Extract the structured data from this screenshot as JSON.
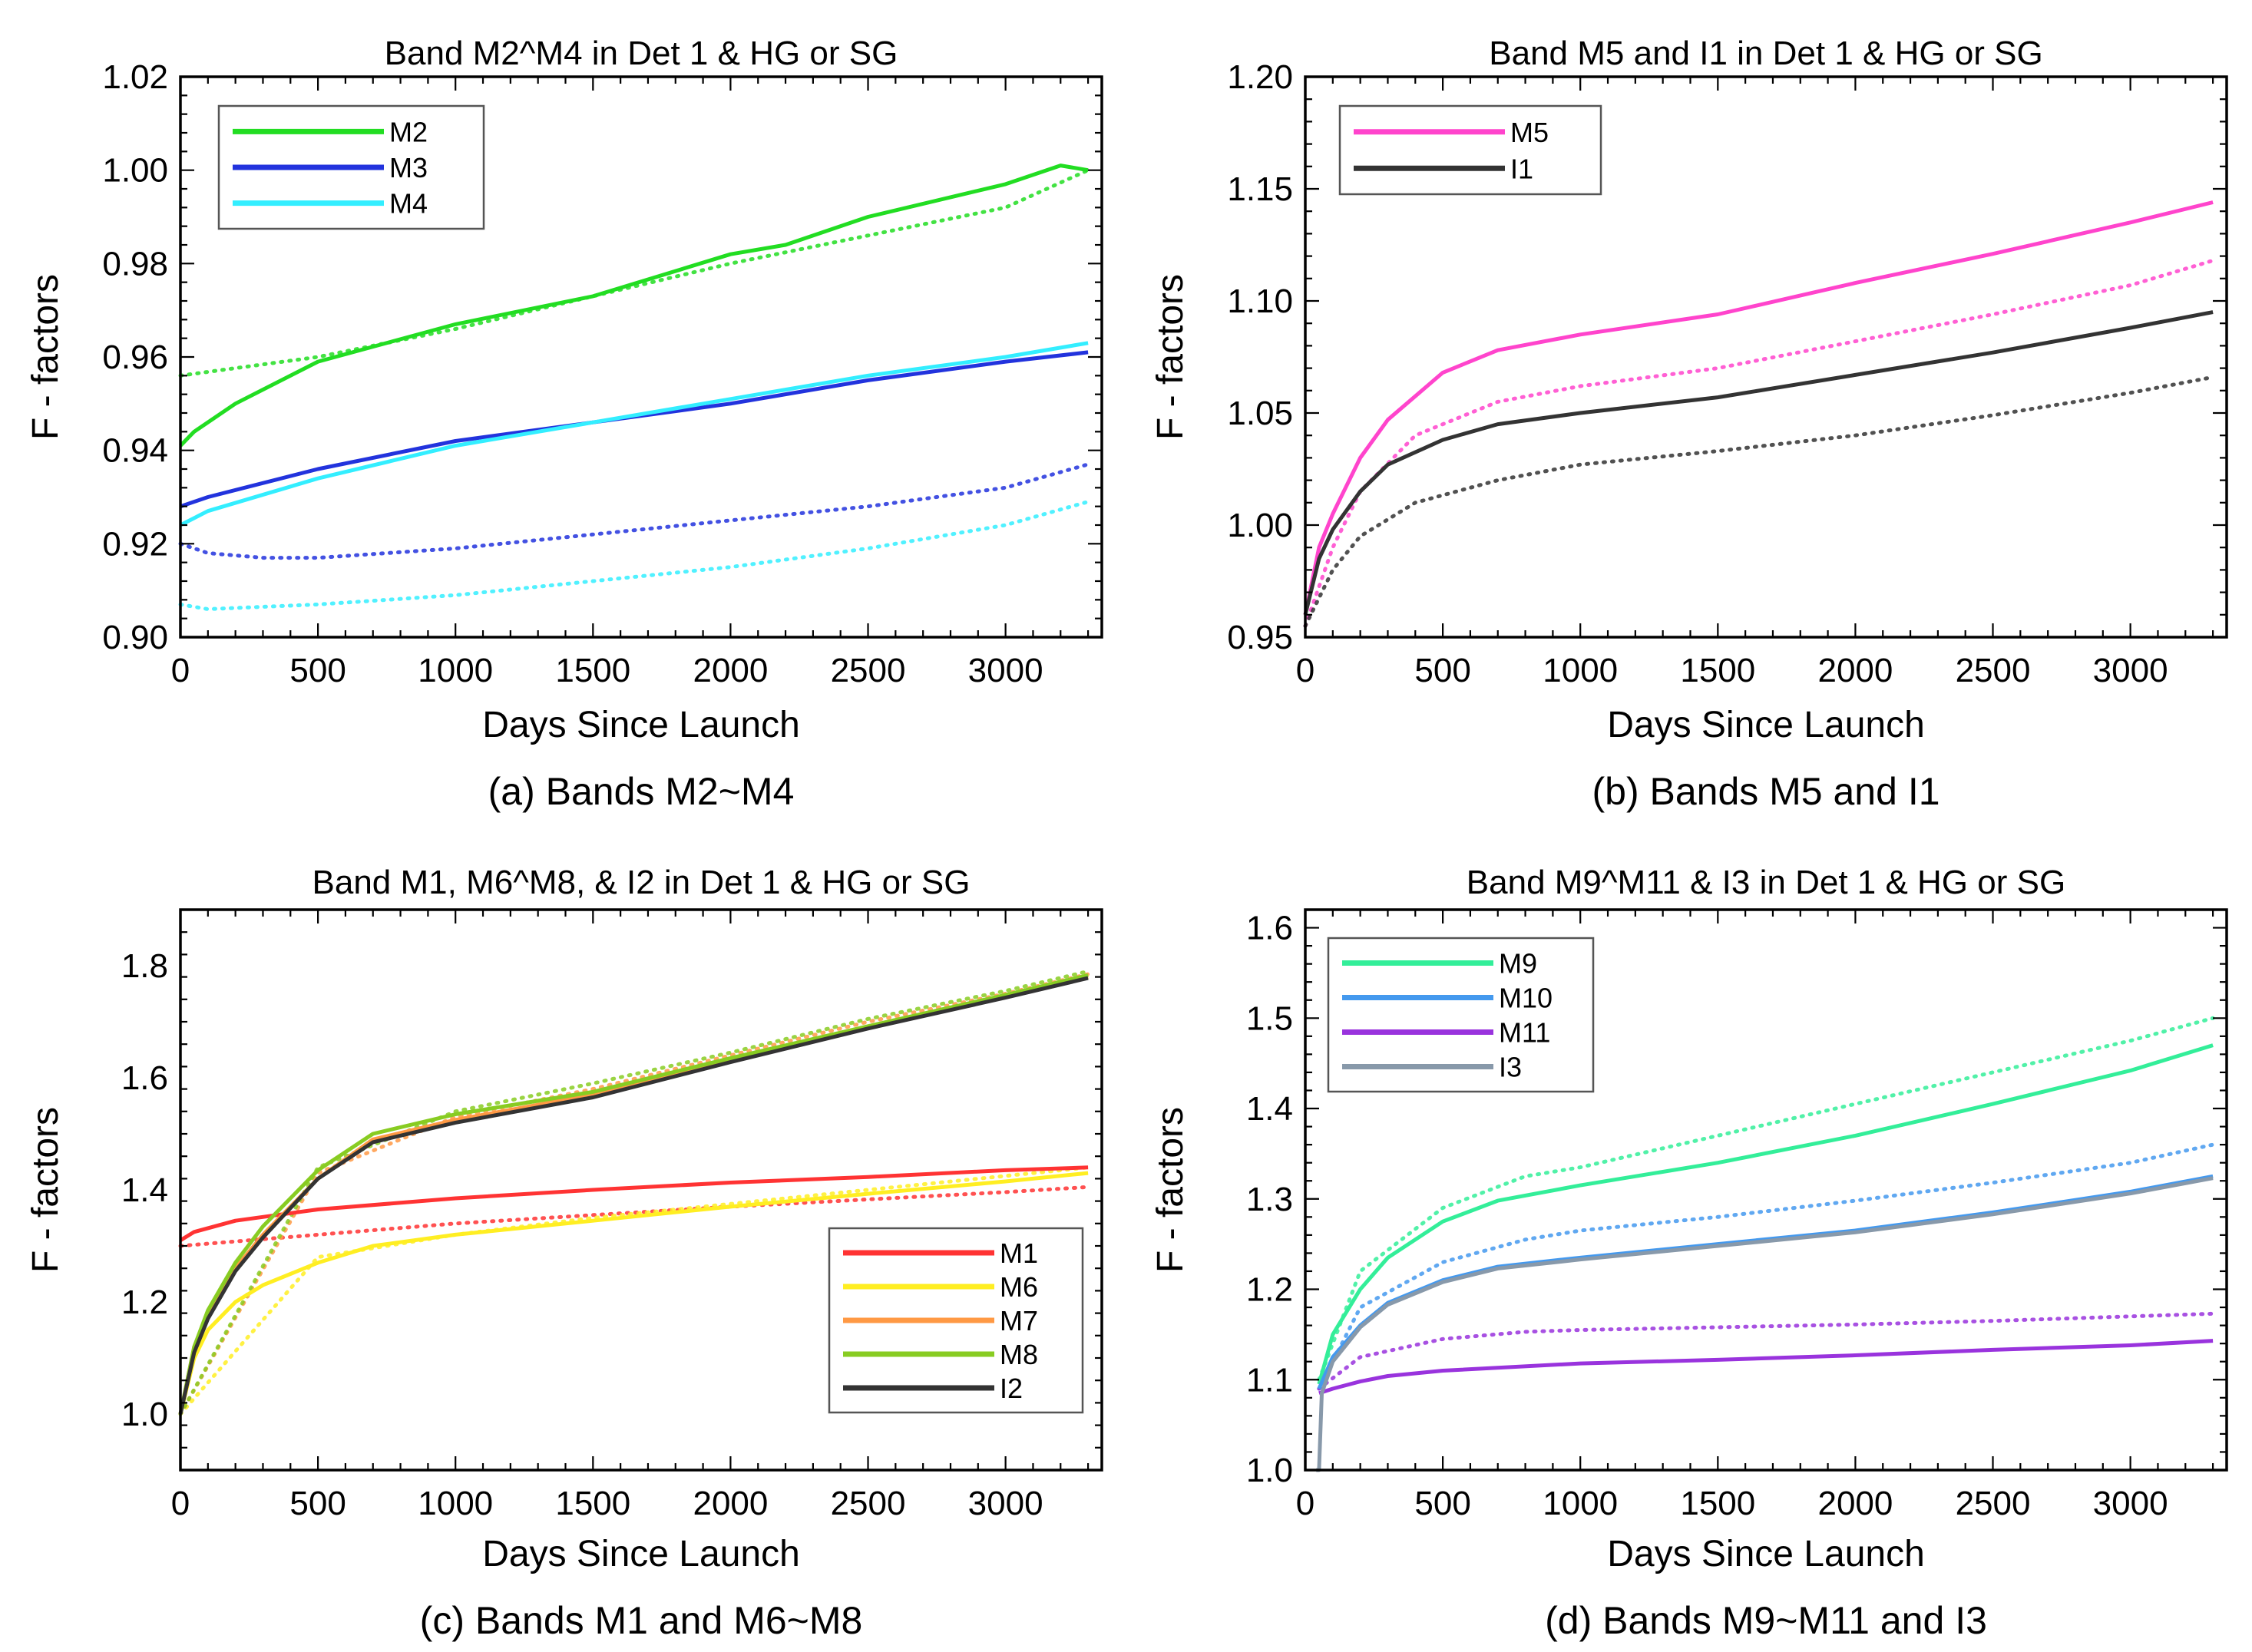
{
  "chart_data": [
    {
      "type": "line",
      "title": "Band M2^M4 in Det 1 & HG or SG",
      "xlabel": "Days Since Launch",
      "ylabel": "F - factors",
      "caption": "(a) Bands M2~M4",
      "xlim": [
        0,
        3350
      ],
      "ylim": [
        0.9,
        1.02
      ],
      "xticks": [
        0,
        500,
        1000,
        1500,
        2000,
        2500,
        3000
      ],
      "yticks": [
        0.9,
        0.92,
        0.94,
        0.96,
        0.98,
        1.0,
        1.02
      ],
      "ytick_labels": [
        "0.90",
        "0.92",
        "0.94",
        "0.96",
        "0.98",
        "1.00",
        "1.02"
      ],
      "legend_position": "top-left",
      "series": [
        {
          "name": "M2",
          "color": "#22dd22",
          "x": [
            0,
            50,
            200,
            500,
            1000,
            1500,
            2000,
            2200,
            2500,
            3000,
            3200,
            3300
          ],
          "values": [
            0.941,
            0.944,
            0.95,
            0.959,
            0.967,
            0.973,
            0.982,
            0.984,
            0.99,
            0.997,
            1.001,
            1.0
          ],
          "ref_x": [
            0,
            500,
            1000,
            1500,
            2000,
            2500,
            3000,
            3300
          ],
          "ref_values": [
            0.956,
            0.96,
            0.966,
            0.973,
            0.98,
            0.986,
            0.992,
            1.0
          ]
        },
        {
          "name": "M3",
          "color": "#2233dd",
          "x": [
            0,
            100,
            500,
            1000,
            1500,
            2000,
            2500,
            3000,
            3300
          ],
          "values": [
            0.928,
            0.93,
            0.936,
            0.942,
            0.946,
            0.95,
            0.955,
            0.959,
            0.961
          ],
          "ref_x": [
            0,
            100,
            300,
            500,
            1000,
            1500,
            2000,
            2500,
            3000,
            3300
          ],
          "ref_values": [
            0.92,
            0.918,
            0.917,
            0.917,
            0.919,
            0.922,
            0.925,
            0.928,
            0.932,
            0.937
          ]
        },
        {
          "name": "M4",
          "color": "#33eeff",
          "x": [
            0,
            100,
            500,
            1000,
            1500,
            2000,
            2500,
            3000,
            3300
          ],
          "values": [
            0.924,
            0.927,
            0.934,
            0.941,
            0.946,
            0.951,
            0.956,
            0.96,
            0.963
          ],
          "ref_x": [
            0,
            100,
            500,
            1000,
            1500,
            2000,
            2500,
            3000,
            3300
          ],
          "ref_values": [
            0.907,
            0.906,
            0.907,
            0.909,
            0.912,
            0.915,
            0.919,
            0.924,
            0.929
          ]
        }
      ]
    },
    {
      "type": "line",
      "title": "Band M5 and I1 in Det 1 & HG or SG",
      "xlabel": "Days Since Launch",
      "ylabel": "F - factors",
      "caption": "(b) Bands M5 and I1",
      "xlim": [
        0,
        3350
      ],
      "ylim": [
        0.95,
        1.2
      ],
      "xticks": [
        0,
        500,
        1000,
        1500,
        2000,
        2500,
        3000
      ],
      "yticks": [
        0.95,
        1.0,
        1.05,
        1.1,
        1.15,
        1.2
      ],
      "ytick_labels": [
        "0.95",
        "1.00",
        "1.05",
        "1.10",
        "1.15",
        "1.20"
      ],
      "legend_position": "top-left",
      "series": [
        {
          "name": "M5",
          "color": "#ff44cc",
          "x": [
            0,
            50,
            100,
            200,
            300,
            500,
            700,
            1000,
            1500,
            2000,
            2500,
            3000,
            3300
          ],
          "values": [
            0.96,
            0.99,
            1.005,
            1.03,
            1.047,
            1.068,
            1.078,
            1.085,
            1.094,
            1.108,
            1.121,
            1.135,
            1.144
          ],
          "ref_x": [
            0,
            100,
            200,
            400,
            700,
            1000,
            1500,
            2000,
            2500,
            3000,
            3300
          ],
          "ref_values": [
            0.955,
            0.99,
            1.015,
            1.04,
            1.055,
            1.062,
            1.07,
            1.082,
            1.094,
            1.107,
            1.118
          ]
        },
        {
          "name": "I1",
          "color": "#333333",
          "x": [
            0,
            50,
            100,
            200,
            300,
            500,
            700,
            1000,
            1500,
            2000,
            2500,
            3000,
            3300
          ],
          "values": [
            0.96,
            0.985,
            0.998,
            1.015,
            1.027,
            1.038,
            1.045,
            1.05,
            1.057,
            1.067,
            1.077,
            1.088,
            1.095
          ],
          "ref_x": [
            0,
            100,
            200,
            400,
            700,
            1000,
            1500,
            2000,
            2500,
            3000,
            3300
          ],
          "ref_values": [
            0.955,
            0.98,
            0.995,
            1.01,
            1.02,
            1.027,
            1.033,
            1.04,
            1.049,
            1.059,
            1.066
          ]
        }
      ]
    },
    {
      "type": "line",
      "title": "Band M1, M6^M8, & I2 in Det 1 & HG or SG",
      "xlabel": "Days Since Launch",
      "ylabel": "F - factors",
      "caption": "(c) Bands M1 and M6~M8",
      "xlim": [
        0,
        3350
      ],
      "ylim": [
        0.9,
        1.9
      ],
      "xticks": [
        0,
        500,
        1000,
        1500,
        2000,
        2500,
        3000
      ],
      "yticks": [
        1.0,
        1.2,
        1.4,
        1.6,
        1.8
      ],
      "ytick_labels": [
        "1.0",
        "1.2",
        "1.4",
        "1.6",
        "1.8"
      ],
      "legend_position": "bottom-right",
      "series": [
        {
          "name": "M1",
          "color": "#ff3333",
          "x": [
            0,
            50,
            200,
            500,
            1000,
            1500,
            2000,
            2500,
            3000,
            3300
          ],
          "values": [
            1.31,
            1.325,
            1.345,
            1.365,
            1.385,
            1.4,
            1.413,
            1.423,
            1.435,
            1.44
          ],
          "ref_x": [
            0,
            500,
            1000,
            1500,
            2000,
            2500,
            3000,
            3300
          ],
          "ref_values": [
            1.3,
            1.32,
            1.34,
            1.355,
            1.37,
            1.383,
            1.396,
            1.405
          ]
        },
        {
          "name": "M6",
          "color": "#ffee22",
          "x": [
            0,
            50,
            100,
            200,
            300,
            500,
            700,
            1000,
            1500,
            2000,
            2500,
            3000,
            3300
          ],
          "values": [
            1.0,
            1.1,
            1.15,
            1.2,
            1.23,
            1.27,
            1.3,
            1.32,
            1.345,
            1.37,
            1.393,
            1.415,
            1.43
          ],
          "ref_x": [
            0,
            500,
            1000,
            1500,
            2000,
            2500,
            3000,
            3300
          ],
          "ref_values": [
            1.0,
            1.28,
            1.32,
            1.35,
            1.375,
            1.4,
            1.425,
            1.44
          ]
        },
        {
          "name": "M7",
          "color": "#ff9944",
          "x": [
            0,
            50,
            100,
            200,
            300,
            500,
            700,
            1000,
            1500,
            2000,
            2500,
            3000,
            3300
          ],
          "values": [
            1.0,
            1.12,
            1.18,
            1.26,
            1.32,
            1.42,
            1.49,
            1.525,
            1.57,
            1.63,
            1.69,
            1.745,
            1.78
          ],
          "ref_x": [
            0,
            500,
            1000,
            1500,
            2000,
            2500,
            3000,
            3300
          ],
          "ref_values": [
            1.0,
            1.43,
            1.53,
            1.58,
            1.64,
            1.7,
            1.75,
            1.785
          ]
        },
        {
          "name": "M8",
          "color": "#88cc22",
          "x": [
            0,
            50,
            100,
            200,
            300,
            500,
            700,
            1000,
            1500,
            2000,
            2500,
            3000,
            3300
          ],
          "values": [
            1.0,
            1.12,
            1.185,
            1.27,
            1.335,
            1.435,
            1.5,
            1.535,
            1.575,
            1.635,
            1.692,
            1.748,
            1.783
          ],
          "ref_x": [
            0,
            500,
            1000,
            1500,
            2000,
            2500,
            3000,
            3300
          ],
          "ref_values": [
            1.0,
            1.44,
            1.54,
            1.59,
            1.645,
            1.705,
            1.755,
            1.79
          ]
        },
        {
          "name": "I2",
          "color": "#333333",
          "x": [
            0,
            50,
            100,
            200,
            300,
            500,
            700,
            1000,
            1500,
            2000,
            2500,
            3000,
            3300
          ],
          "values": [
            1.0,
            1.11,
            1.17,
            1.255,
            1.315,
            1.42,
            1.485,
            1.52,
            1.565,
            1.628,
            1.688,
            1.743,
            1.778
          ]
        }
      ]
    },
    {
      "type": "line",
      "title": "Band M9^M11 & I3 in Det 1 & HG or SG",
      "xlabel": "Days Since Launch",
      "ylabel": "F - factors",
      "caption": "(d) Bands M9~M11 and I3",
      "xlim": [
        0,
        3350
      ],
      "ylim": [
        1.0,
        1.62
      ],
      "xticks": [
        0,
        500,
        1000,
        1500,
        2000,
        2500,
        3000
      ],
      "yticks": [
        1.0,
        1.1,
        1.2,
        1.3,
        1.4,
        1.5,
        1.6
      ],
      "ytick_labels": [
        "1.0",
        "1.1",
        "1.2",
        "1.3",
        "1.4",
        "1.5",
        "1.6"
      ],
      "legend_position": "top-left",
      "series": [
        {
          "name": "M9",
          "color": "#33ee99",
          "x": [
            50,
            100,
            200,
            300,
            500,
            700,
            1000,
            1500,
            2000,
            2500,
            3000,
            3300
          ],
          "values": [
            1.095,
            1.15,
            1.2,
            1.235,
            1.275,
            1.298,
            1.315,
            1.34,
            1.37,
            1.405,
            1.442,
            1.47
          ],
          "ref_x": [
            50,
            200,
            500,
            800,
            1000,
            1500,
            2000,
            2500,
            3000,
            3300
          ],
          "ref_values": [
            1.1,
            1.22,
            1.29,
            1.325,
            1.335,
            1.37,
            1.405,
            1.44,
            1.475,
            1.5
          ]
        },
        {
          "name": "M10",
          "color": "#4499ee",
          "x": [
            50,
            100,
            200,
            300,
            500,
            700,
            1000,
            1500,
            2000,
            2500,
            3000,
            3300
          ],
          "values": [
            1.09,
            1.125,
            1.16,
            1.185,
            1.21,
            1.225,
            1.235,
            1.25,
            1.265,
            1.285,
            1.308,
            1.325
          ],
          "ref_x": [
            50,
            200,
            500,
            800,
            1000,
            1500,
            2000,
            2500,
            3000,
            3300
          ],
          "ref_values": [
            1.09,
            1.18,
            1.23,
            1.255,
            1.265,
            1.28,
            1.298,
            1.318,
            1.34,
            1.36
          ]
        },
        {
          "name": "M11",
          "color": "#9933dd",
          "x": [
            50,
            100,
            200,
            300,
            500,
            1000,
            1500,
            2000,
            2500,
            3000,
            3300
          ],
          "values": [
            1.085,
            1.09,
            1.098,
            1.104,
            1.11,
            1.118,
            1.122,
            1.127,
            1.133,
            1.138,
            1.143
          ],
          "ref_x": [
            50,
            200,
            500,
            800,
            1000,
            1500,
            2000,
            2500,
            3000,
            3300
          ],
          "ref_values": [
            1.09,
            1.125,
            1.145,
            1.153,
            1.155,
            1.158,
            1.161,
            1.165,
            1.17,
            1.173
          ]
        },
        {
          "name": "I3",
          "color": "#8899aa",
          "x": [
            40,
            50,
            60,
            100,
            200,
            300,
            500,
            700,
            1000,
            1500,
            2000,
            2500,
            3000,
            3300
          ],
          "values": [
            1.0,
            1.0,
            1.085,
            1.12,
            1.158,
            1.183,
            1.208,
            1.223,
            1.233,
            1.248,
            1.263,
            1.283,
            1.306,
            1.323
          ]
        }
      ]
    }
  ]
}
